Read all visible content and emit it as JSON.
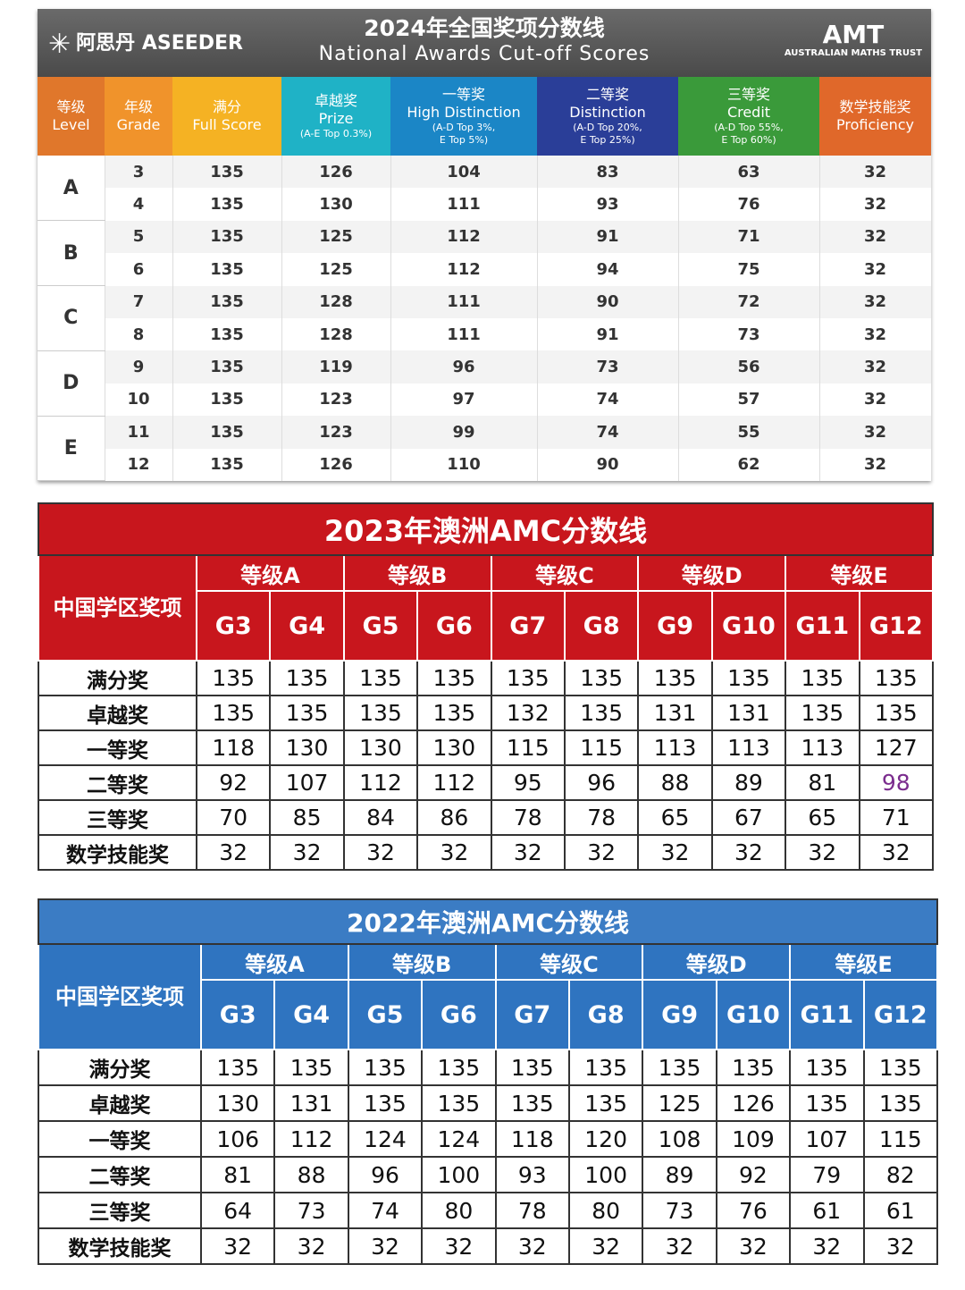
{
  "t2024": {
    "brand": {
      "cn": "阿思丹",
      "en": "ASEEDER"
    },
    "title": "2024年全国奖项分数线",
    "subtitle": "National Awards Cut-off Scores",
    "partner": {
      "name": "AMT",
      "full": "AUSTRALIAN MATHS TRUST"
    },
    "columns": [
      [
        "等级",
        "Level"
      ],
      [
        "年级",
        "Grade"
      ],
      [
        "满分",
        "Full Score"
      ],
      [
        "卓越奖",
        "Prize",
        "(A-E Top 0.3%)"
      ],
      [
        "一等奖",
        "High Distinction",
        "(A-D Top 3%,",
        "E Top 5%)"
      ],
      [
        "二等奖",
        "Distinction",
        "(A-D Top 20%,",
        "E Top 25%)"
      ],
      [
        "三等奖",
        "Credit",
        "(A-D Top 55%,",
        "E Top 60%)"
      ],
      [
        "数学技能奖",
        "Proficiency"
      ]
    ],
    "groups": [
      {
        "level": "A",
        "rows": [
          [
            3,
            135,
            126,
            104,
            83,
            63,
            32
          ],
          [
            4,
            135,
            130,
            111,
            93,
            76,
            32
          ]
        ]
      },
      {
        "level": "B",
        "rows": [
          [
            5,
            135,
            125,
            112,
            91,
            71,
            32
          ],
          [
            6,
            135,
            125,
            112,
            94,
            75,
            32
          ]
        ]
      },
      {
        "level": "C",
        "rows": [
          [
            7,
            135,
            128,
            111,
            90,
            72,
            32
          ],
          [
            8,
            135,
            128,
            111,
            91,
            73,
            32
          ]
        ]
      },
      {
        "level": "D",
        "rows": [
          [
            9,
            135,
            119,
            96,
            73,
            56,
            32
          ],
          [
            10,
            135,
            123,
            97,
            74,
            57,
            32
          ]
        ]
      },
      {
        "level": "E",
        "rows": [
          [
            11,
            135,
            123,
            99,
            74,
            55,
            32
          ],
          [
            12,
            135,
            126,
            110,
            90,
            62,
            32
          ]
        ]
      }
    ]
  },
  "t2023": {
    "title": "2023年澳洲AMC分数线",
    "corner": "中国学区奖项",
    "levels": [
      "等级A",
      "等级B",
      "等级C",
      "等级D",
      "等级E"
    ],
    "grades": [
      "G3",
      "G4",
      "G5",
      "G6",
      "G7",
      "G8",
      "G9",
      "G10",
      "G11",
      "G12"
    ],
    "rows": [
      {
        "label": "满分奖",
        "values": [
          135,
          135,
          135,
          135,
          135,
          135,
          135,
          135,
          135,
          135
        ]
      },
      {
        "label": "卓越奖",
        "values": [
          135,
          135,
          135,
          135,
          132,
          135,
          131,
          131,
          135,
          135
        ]
      },
      {
        "label": "一等奖",
        "values": [
          118,
          130,
          130,
          130,
          115,
          115,
          113,
          113,
          113,
          127
        ]
      },
      {
        "label": "二等奖",
        "values": [
          92,
          107,
          112,
          112,
          95,
          96,
          88,
          89,
          81,
          98
        ]
      },
      {
        "label": "三等奖",
        "values": [
          70,
          85,
          84,
          86,
          78,
          78,
          65,
          67,
          65,
          71
        ]
      },
      {
        "label": "数学技能奖",
        "values": [
          32,
          32,
          32,
          32,
          32,
          32,
          32,
          32,
          32,
          32
        ]
      }
    ]
  },
  "t2022": {
    "title": "2022年澳洲AMC分数线",
    "corner": "中国学区奖项",
    "levels": [
      "等级A",
      "等级B",
      "等级C",
      "等级D",
      "等级E"
    ],
    "grades": [
      "G3",
      "G4",
      "G5",
      "G6",
      "G7",
      "G8",
      "G9",
      "G10",
      "G11",
      "G12"
    ],
    "rows": [
      {
        "label": "满分奖",
        "values": [
          135,
          135,
          135,
          135,
          135,
          135,
          135,
          135,
          135,
          135
        ]
      },
      {
        "label": "卓越奖",
        "values": [
          130,
          131,
          135,
          135,
          135,
          135,
          125,
          126,
          135,
          135
        ]
      },
      {
        "label": "一等奖",
        "values": [
          106,
          112,
          124,
          124,
          118,
          120,
          108,
          109,
          107,
          115
        ]
      },
      {
        "label": "二等奖",
        "values": [
          81,
          88,
          96,
          100,
          93,
          100,
          89,
          92,
          79,
          82
        ]
      },
      {
        "label": "三等奖",
        "values": [
          64,
          73,
          74,
          80,
          78,
          80,
          73,
          76,
          61,
          61
        ]
      },
      {
        "label": "数学技能奖",
        "values": [
          32,
          32,
          32,
          32,
          32,
          32,
          32,
          32,
          32,
          32
        ]
      }
    ]
  }
}
